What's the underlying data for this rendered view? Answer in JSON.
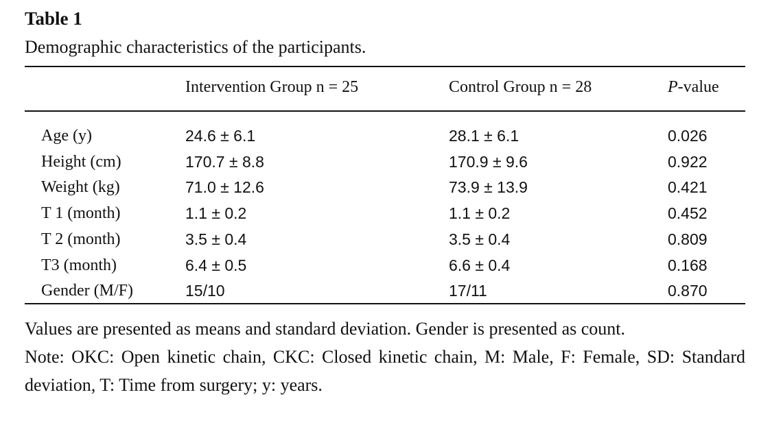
{
  "title": "Table 1",
  "caption": "Demographic characteristics of the participants.",
  "table": {
    "header": [
      "Intervention Group n = 25",
      "Control Group n = 28",
      {
        "italic": "P",
        "text": "-value"
      }
    ],
    "rows": [
      [
        "Age (y)",
        "24.6 ± 6.1",
        "28.1 ± 6.1",
        "0.026"
      ],
      [
        "Height (cm)",
        "170.7 ± 8.8",
        "170.9 ± 9.6",
        "0.922"
      ],
      [
        "Weight (kg)",
        "71.0 ± 12.6",
        "73.9 ± 13.9",
        "0.421"
      ],
      [
        "T 1 (month)",
        "1.1 ± 0.2",
        "1.1 ± 0.2",
        "0.452"
      ],
      [
        "T 2 (month)",
        "3.5 ± 0.4",
        "3.5 ± 0.4",
        "0.809"
      ],
      [
        "T3 (month)",
        "6.4 ± 0.5",
        "6.6 ± 0.4",
        "0.168"
      ],
      [
        "Gender (M/F)",
        "15/10",
        "17/11",
        "0.870"
      ]
    ]
  },
  "footnotes": [
    "Values are presented as means and standard deviation. Gender is presented as count.",
    "Note: OKC: Open kinetic chain, CKC: Closed kinetic chain, M: Male, F: Female, SD: Standard deviation, T: Time from surgery; y: years."
  ]
}
